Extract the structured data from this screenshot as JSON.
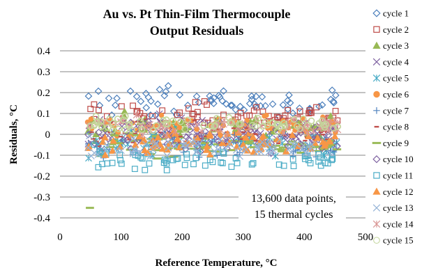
{
  "chart_data": {
    "type": "scatter",
    "title_lines": [
      "Au vs. Pt Thin-Film Thermocouple",
      "Output Residuals"
    ],
    "xlabel": "Reference Temperature, °C",
    "ylabel": "Residuals, °C",
    "xlim": [
      0,
      500
    ],
    "ylim": [
      -0.4,
      0.4
    ],
    "x_ticks": [
      "0",
      "100",
      "200",
      "300",
      "400",
      "500"
    ],
    "y_ticks": [
      "0.4",
      "0.3",
      "0.2",
      "0.1",
      "0",
      "-0.1",
      "-0.2",
      "-0.3",
      "-0.4"
    ],
    "x_tick_values": [
      0,
      100,
      200,
      300,
      400,
      500
    ],
    "y_tick_values": [
      0.4,
      0.3,
      0.2,
      0.1,
      0,
      -0.1,
      -0.2,
      -0.3,
      -0.4
    ],
    "grid": "horizontal",
    "legend_position": "right",
    "annotation_lines": [
      "13,600 data points,",
      "15 thermal cycles"
    ],
    "x_data_range": [
      45,
      455
    ],
    "series": [
      {
        "name": "cycle 1",
        "marker": "diamond",
        "color": "#4a7ebb",
        "center": 0.15,
        "spread": 0.14
      },
      {
        "name": "cycle 2",
        "marker": "square",
        "color": "#be4b48",
        "center": 0.09,
        "spread": 0.12
      },
      {
        "name": "cycle 3",
        "marker": "triangle",
        "color": "#98b954",
        "center": 0.04,
        "spread": 0.12
      },
      {
        "name": "cycle 4",
        "marker": "x",
        "color": "#7d60a0",
        "center": 0.02,
        "spread": 0.14
      },
      {
        "name": "cycle 5",
        "marker": "star",
        "color": "#46aac5",
        "center": -0.04,
        "spread": 0.12
      },
      {
        "name": "cycle 6",
        "marker": "circle",
        "color": "#f79646",
        "center": 0.04,
        "spread": 0.12
      },
      {
        "name": "cycle 7",
        "marker": "plus",
        "color": "#4f81bd",
        "center": -0.06,
        "spread": 0.12
      },
      {
        "name": "cycle 8",
        "marker": "dash",
        "color": "#c0504d",
        "center": -0.02,
        "spread": 0.14
      },
      {
        "name": "cycle 9",
        "marker": "longdash",
        "color": "#9bbb59",
        "center": -0.05,
        "spread": 0.12
      },
      {
        "name": "cycle 10",
        "marker": "diamond",
        "color": "#8064a2",
        "center": -0.02,
        "spread": 0.14
      },
      {
        "name": "cycle 11",
        "marker": "square",
        "color": "#4bacc6",
        "center": -0.12,
        "spread": 0.1
      },
      {
        "name": "cycle 12",
        "marker": "triangle",
        "color": "#f79646",
        "center": -0.04,
        "spread": 0.1
      },
      {
        "name": "cycle 13",
        "marker": "x",
        "color": "#95b3d7",
        "center": -0.06,
        "spread": 0.1
      },
      {
        "name": "cycle 14",
        "marker": "star",
        "color": "#d99694",
        "center": 0.04,
        "spread": 0.1
      },
      {
        "name": "cycle 15",
        "marker": "circle",
        "color": "#c3d69b",
        "center": 0.05,
        "spread": 0.08
      }
    ]
  }
}
